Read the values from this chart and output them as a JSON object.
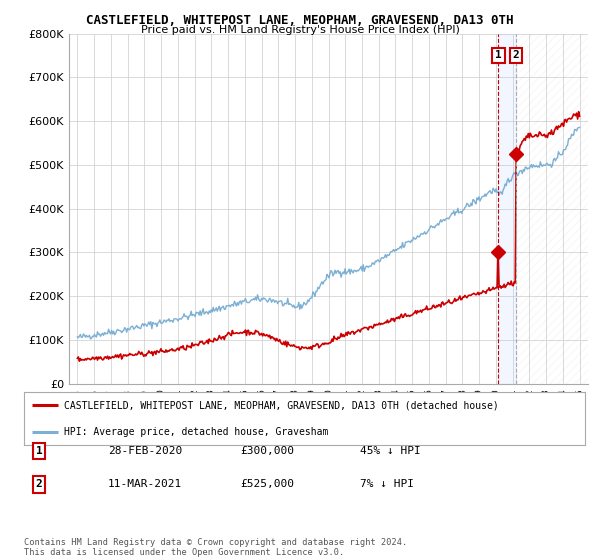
{
  "title": "CASTLEFIELD, WHITEPOST LANE, MEOPHAM, GRAVESEND, DA13 0TH",
  "subtitle": "Price paid vs. HM Land Registry's House Price Index (HPI)",
  "legend_line1": "CASTLEFIELD, WHITEPOST LANE, MEOPHAM, GRAVESEND, DA13 0TH (detached house)",
  "legend_line2": "HPI: Average price, detached house, Gravesham",
  "hpi_color": "#7bafd4",
  "price_color": "#cc0000",
  "vline_color": "#cc0000",
  "sale1_date": "28-FEB-2020",
  "sale1_price": "£300,000",
  "sale1_hpi": "45% ↓ HPI",
  "sale1_label": "1",
  "sale1_year": 2020.15,
  "sale1_value": 300000,
  "sale2_date": "11-MAR-2021",
  "sale2_price": "£525,000",
  "sale2_hpi": "7% ↓ HPI",
  "sale2_label": "2",
  "sale2_year": 2021.2,
  "sale2_value": 525000,
  "ylim": [
    0,
    800000
  ],
  "xlim_start": 1994.5,
  "xlim_end": 2025.5,
  "ylabel_ticks": [
    0,
    100000,
    200000,
    300000,
    400000,
    500000,
    600000,
    700000,
    800000
  ],
  "ylabel_labels": [
    "£0",
    "£100K",
    "£200K",
    "£300K",
    "£400K",
    "£500K",
    "£600K",
    "£700K",
    "£800K"
  ],
  "footer": "Contains HM Land Registry data © Crown copyright and database right 2024.\nThis data is licensed under the Open Government Licence v3.0.",
  "background_color": "#ffffff",
  "grid_color": "#cccccc"
}
